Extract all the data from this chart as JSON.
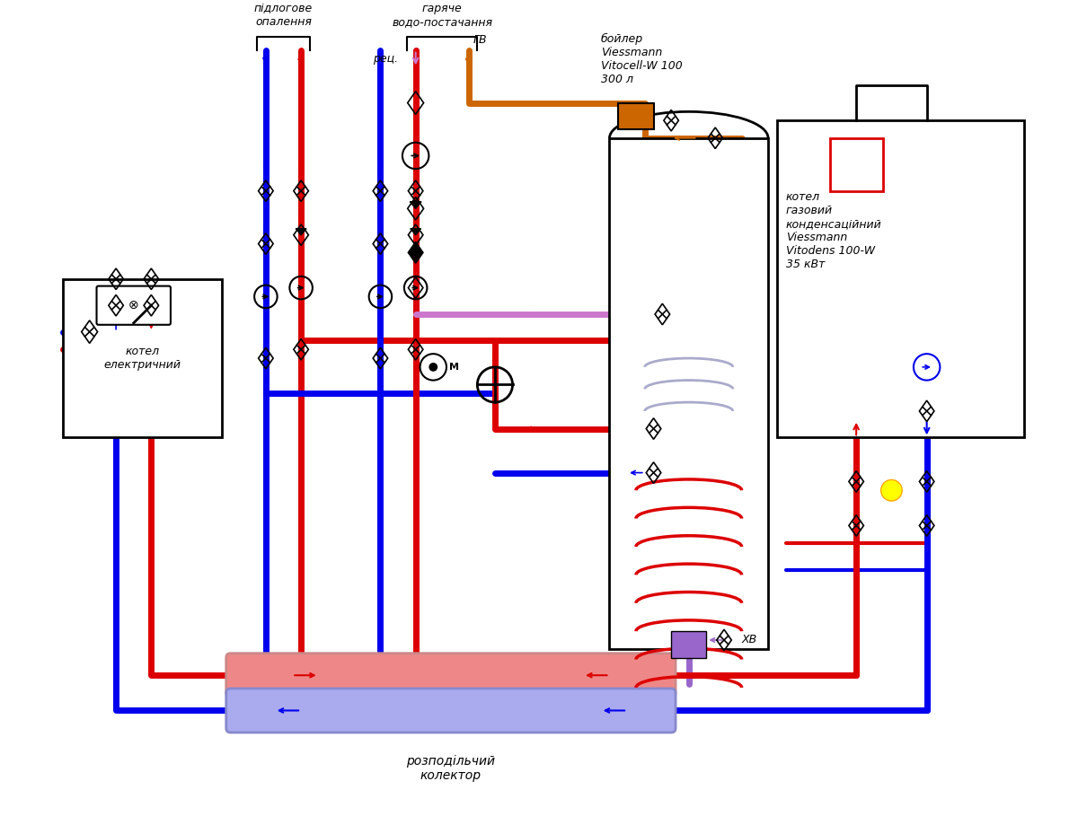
{
  "bg_color": "#ffffff",
  "title": "",
  "pipe_red": "#dd0000",
  "pipe_blue": "#0000ee",
  "pipe_pink": "#cc77cc",
  "pipe_orange": "#cc6600",
  "pipe_gray": "#999999",
  "boiler_color": "#cc6600",
  "collector_red": "#ee8888",
  "collector_blue": "#aaaaee",
  "label_floor": "підлогове\nопалення",
  "label_hot": "гаряче\nводо-постачання",
  "label_boiler": "бойлер\nViessmann\nVitocell-W 100\n300 л",
  "label_gas_boiler": "котел\nгазовий\nконденсаційний\nViessmann\nVitodens 100-W\n35 кВт",
  "label_electric": "котел\nелектричний",
  "label_rec": "рец.",
  "label_gv": "ГВ",
  "label_xv": "ХВ",
  "label_collector": "розподільчий\nколектор",
  "lw": 5
}
